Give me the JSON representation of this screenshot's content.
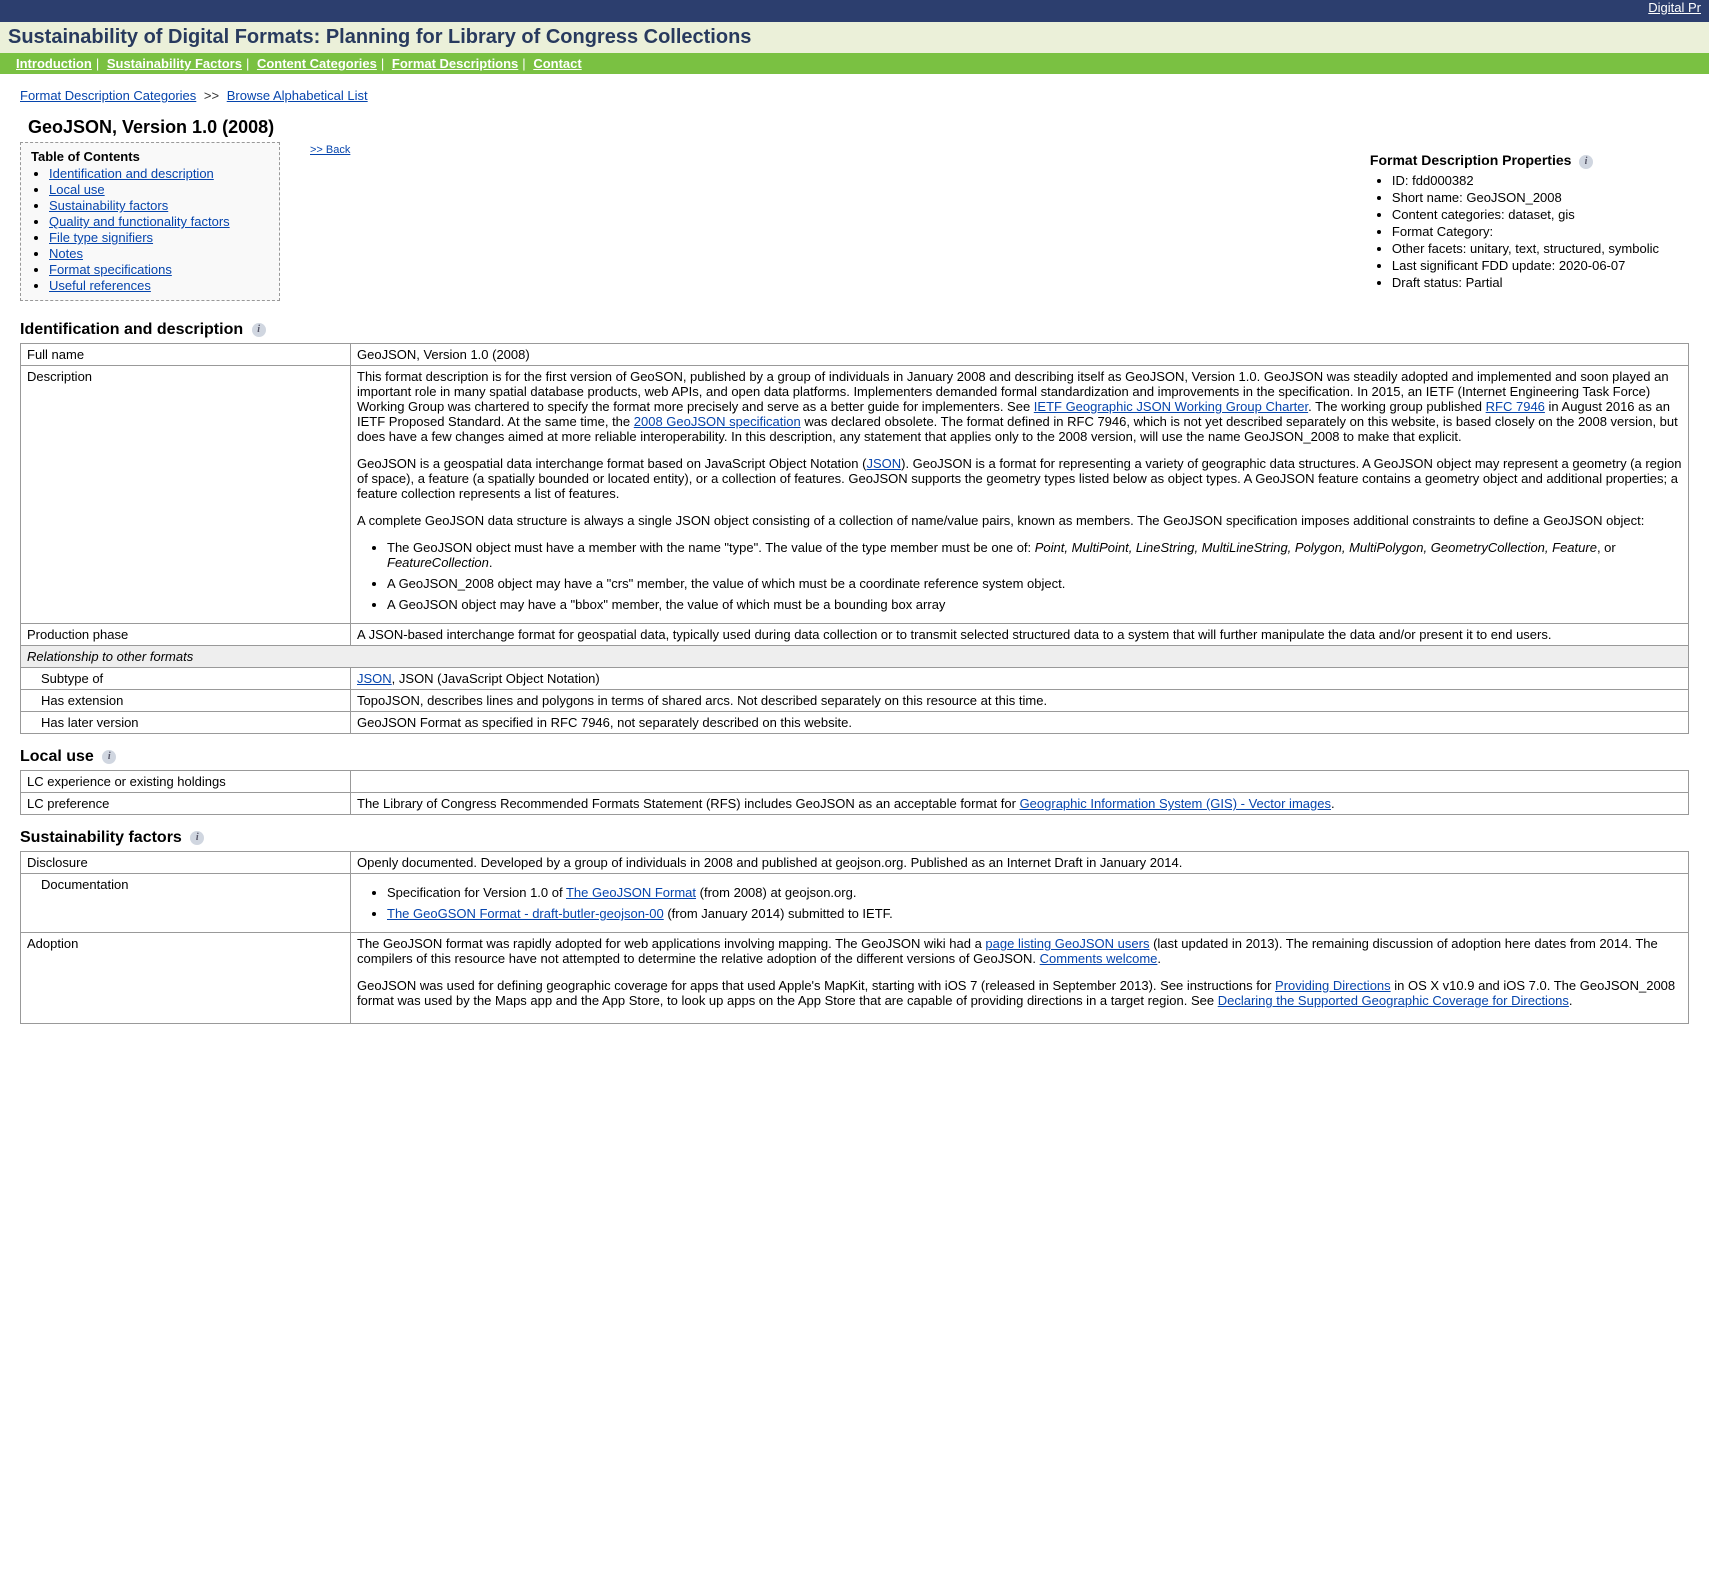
{
  "top_link": "Digital Pr",
  "site_title": "Sustainability of Digital Formats: Planning for Library of Congress Collections",
  "nav": [
    "Introduction",
    "Sustainability Factors",
    "Content Categories",
    "Format Descriptions",
    "Contact"
  ],
  "breadcrumb": {
    "a": "Format Description Categories",
    "b": "Browse Alphabetical List"
  },
  "page_title": "GeoJSON, Version 1.0 (2008)",
  "back": ">> Back",
  "toc": {
    "title": "Table of Contents",
    "items": [
      "Identification and description",
      "Local use",
      "Sustainability factors",
      "Quality and functionality factors",
      "File type signifiers",
      "Notes",
      "Format specifications",
      "Useful references"
    ]
  },
  "props": {
    "title": "Format Description Properties",
    "items": [
      "ID: fdd000382",
      "Short name: GeoJSON_2008",
      "Content categories: dataset, gis",
      "Format Category:",
      "Other facets: unitary, text, structured, symbolic",
      "Last significant FDD update: 2020-06-07",
      "Draft status: Partial"
    ]
  },
  "sec_id": {
    "heading": "Identification and description",
    "full_name_lbl": "Full name",
    "full_name_val": "GeoJSON, Version 1.0 (2008)",
    "desc_lbl": "Description",
    "d1a": "This format description is for the first version of GeoSON, published by a group of individuals in January 2008 and describing itself as GeoJSON, Version 1.0. GeoJSON was steadily adopted and implemented and soon played an important role in many spatial database products, web APIs, and open data platforms. Implementers demanded formal standardization and improvements in the specification. In 2015, an IETF (Internet Engineering Task Force) Working Group was chartered to specify the format more precisely and serve as a better guide for implementers. See ",
    "d1_link1": "IETF Geographic JSON Working Group Charter",
    "d1b": ". The working group published ",
    "d1_link2": "RFC 7946",
    "d1c": " in August 2016 as an IETF Proposed Standard. At the same time, the ",
    "d1_link3": "2008 GeoJSON specification",
    "d1d": " was declared obsolete. The format defined in RFC 7946, which is not yet described separately on this website, is based closely on the 2008 version, but does have a few changes aimed at more reliable interoperability. In this description, any statement that applies only to the 2008 version, will use the name GeoJSON_2008 to make that explicit.",
    "d2a": "GeoJSON is a geospatial data interchange format based on JavaScript Object Notation (",
    "d2_link": "JSON",
    "d2b": "). GeoJSON is a format for representing a variety of geographic data structures. A GeoJSON object may represent a geometry (a region of space), a feature (a spatially bounded or located entity), or a collection of features. GeoJSON supports the geometry types listed below as object types. A GeoJSON feature contains a geometry object and additional properties; a feature collection represents a list of features.",
    "d3": "A complete GeoJSON data structure is always a single JSON object consisting of a collection of name/value pairs, known as members. The GeoJSON specification imposes additional constraints to define a GeoJSON object:",
    "li1a": "The GeoJSON object must have a member with the name \"type\". The value of the type member must be one of: ",
    "types": "Point, MultiPoint, LineString, MultiLineString, Polygon, MultiPolygon, GeometryCollection, Feature",
    "li1b": ", or ",
    "type_last": "FeatureCollection",
    "li1c": ".",
    "li2": "A GeoJSON_2008 object may have a \"crs\" member, the value of which must be a coordinate reference system object.",
    "li3": "A GeoJSON object may have a \"bbox\" member, the value of which must be a bounding box array",
    "prod_lbl": "Production phase",
    "prod_val": "A JSON-based interchange format for geospatial data, typically used during data collection or to transmit selected structured data to a system that will further manipulate the data and/or present it to end users.",
    "rel_hdr": "Relationship to other formats",
    "sub_lbl": "Subtype of",
    "sub_link": "JSON",
    "sub_txt": ", JSON (JavaScript Object Notation)",
    "ext_lbl": "Has extension",
    "ext_val": "TopoJSON, describes lines and polygons in terms of shared arcs. Not described separately on this resource at this time.",
    "later_lbl": "Has later version",
    "later_val": "GeoJSON Format as specified in RFC 7946, not separately described on this website."
  },
  "sec_local": {
    "heading": "Local use",
    "exp_lbl": "LC experience or existing holdings",
    "pref_lbl": "LC preference",
    "pref_a": "The Library of Congress Recommended Formats Statement (RFS) includes GeoJSON as an acceptable format for ",
    "pref_link": "Geographic Information System (GIS) - Vector images",
    "pref_b": "."
  },
  "sec_sus": {
    "heading": "Sustainability factors",
    "disc_lbl": "Disclosure",
    "disc_val": "Openly documented. Developed by a group of individuals in 2008 and published at geojson.org. Published as an Internet Draft in January 2014.",
    "doc_lbl": "Documentation",
    "doc_li1a": "Specification for Version 1.0 of ",
    "doc_li1_link": "The GeoJSON Format",
    "doc_li1b": " (from 2008) at geojson.org.",
    "doc_li2_link": "The GeoGSON Format - draft-butler-geojson-00",
    "doc_li2b": " (from January 2014) submitted to IETF.",
    "adopt_lbl": "Adoption",
    "adopt1a": "The GeoJSON format was rapidly adopted for web applications involving mapping. The GeoJSON wiki had a ",
    "adopt1_link1": "page listing GeoJSON users",
    "adopt1b": " (last updated in 2013). The remaining discussion of adoption here dates from 2014. The compilers of this resource have not attempted to determine the relative adoption of the different versions of GeoJSON. ",
    "adopt1_link2": "Comments welcome",
    "adopt1c": ".",
    "adopt2a": "GeoJSON was used for defining geographic coverage for apps that used Apple's MapKit, starting with iOS 7 (released in September 2013). See instructions for ",
    "adopt2_link1": "Providing Directions",
    "adopt2b": " in OS X v10.9 and iOS 7.0. The GeoJSON_2008 format was used by the Maps app and the App Store, to look up apps on the App Store that are capable of providing directions in a target region. See ",
    "adopt2_link2": "Declaring the Supported Geographic Coverage for Directions",
    "adopt2c": "."
  }
}
